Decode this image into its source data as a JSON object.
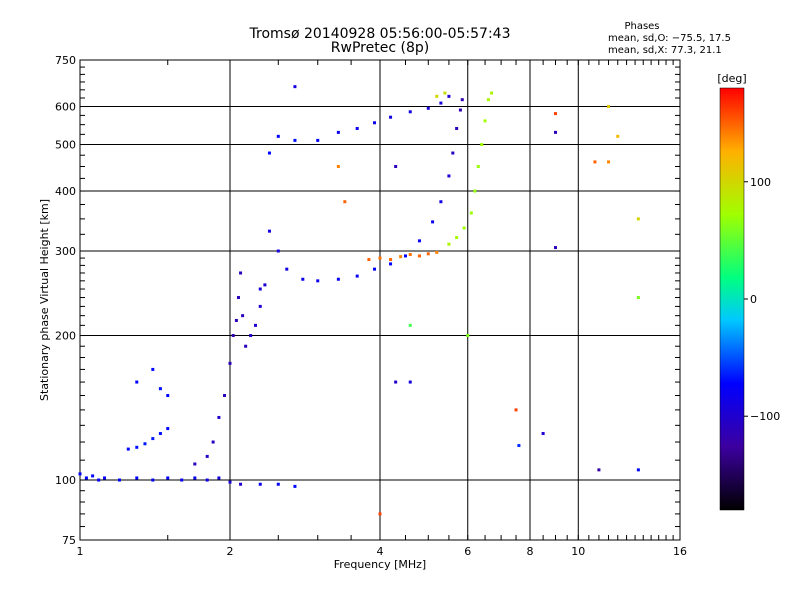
{
  "chart_data": {
    "type": "scatter",
    "title": "Tromsø 20140928 05:56:00-05:57:43",
    "subtitle": "RwPretec (8p)",
    "xlabel": "Frequency [MHz]",
    "ylabel": "Stationary phase Virtual Height [km]",
    "x_scale": "log",
    "y_scale": "log",
    "xlim": [
      1,
      16
    ],
    "ylim": [
      75,
      750
    ],
    "x_ticks": [
      "1",
      "2",
      "4",
      "6",
      "8",
      "10",
      "16"
    ],
    "y_ticks": [
      "75",
      "100",
      "200",
      "300",
      "400",
      "500",
      "600",
      "750"
    ],
    "grid": true,
    "stats": {
      "header": "Phases",
      "line_o": "mean, sd,O: −75.5, 17.5",
      "line_x": "mean, sd,X:  77.3, 21.1"
    },
    "colorbar": {
      "label": "[deg]",
      "range": [
        -180,
        180
      ],
      "ticks": [
        "100",
        "0",
        "−100"
      ],
      "tick_values": [
        100,
        0,
        -100
      ]
    },
    "series": [
      {
        "points": [
          [
            1.0,
            103,
            -75
          ],
          [
            1.03,
            101,
            -72
          ],
          [
            1.06,
            102,
            -70
          ],
          [
            1.09,
            100,
            -74
          ],
          [
            1.12,
            101,
            -78
          ],
          [
            1.2,
            100,
            -75
          ],
          [
            1.3,
            101,
            -72
          ],
          [
            1.4,
            100,
            -76
          ],
          [
            1.5,
            101,
            -74
          ],
          [
            1.6,
            100,
            -78
          ],
          [
            1.7,
            101,
            -80
          ],
          [
            1.8,
            100,
            -85
          ],
          [
            1.9,
            101,
            -90
          ],
          [
            2.0,
            99,
            -95
          ],
          [
            2.1,
            98,
            -100
          ],
          [
            2.3,
            98,
            -80
          ],
          [
            2.5,
            98,
            -75
          ],
          [
            2.7,
            97,
            -70
          ]
        ]
      },
      {
        "points": [
          [
            1.25,
            116,
            -70
          ],
          [
            1.3,
            117,
            -68
          ],
          [
            1.35,
            119,
            -66
          ],
          [
            1.4,
            122,
            -65
          ],
          [
            1.45,
            125,
            -68
          ],
          [
            1.5,
            128,
            -70
          ]
        ]
      },
      {
        "points": [
          [
            1.3,
            160,
            -72
          ],
          [
            1.4,
            170,
            -70
          ],
          [
            1.45,
            155,
            -68
          ],
          [
            1.5,
            150,
            -70
          ]
        ]
      },
      {
        "points": [
          [
            1.7,
            108,
            -110
          ],
          [
            1.8,
            112,
            -105
          ],
          [
            1.85,
            120,
            -108
          ],
          [
            1.9,
            135,
            -102
          ],
          [
            1.95,
            150,
            -110
          ],
          [
            2.0,
            175,
            -112
          ],
          [
            2.03,
            200,
            -115
          ],
          [
            2.06,
            215,
            -110
          ],
          [
            2.08,
            240,
            -112
          ],
          [
            2.1,
            270,
            -108
          ],
          [
            2.12,
            220,
            -110
          ],
          [
            2.15,
            190,
            -112
          ],
          [
            2.2,
            200,
            -105
          ],
          [
            2.25,
            210,
            -100
          ],
          [
            2.3,
            230,
            -98
          ],
          [
            2.35,
            255,
            -95
          ]
        ]
      },
      {
        "points": [
          [
            2.3,
            250,
            -95
          ],
          [
            2.4,
            330,
            -90
          ],
          [
            2.5,
            300,
            -92
          ],
          [
            2.6,
            275,
            -88
          ],
          [
            2.8,
            262,
            -85
          ],
          [
            3.0,
            260,
            -82
          ],
          [
            3.3,
            262,
            -80
          ],
          [
            3.6,
            266,
            -78
          ],
          [
            3.9,
            275,
            -75
          ],
          [
            4.2,
            282,
            -72
          ],
          [
            4.5,
            293,
            -75
          ],
          [
            4.8,
            315,
            -78
          ],
          [
            5.1,
            345,
            -82
          ],
          [
            5.3,
            380,
            -88
          ],
          [
            5.5,
            430,
            -95
          ],
          [
            5.6,
            480,
            -105
          ],
          [
            5.7,
            540,
            -110
          ],
          [
            5.8,
            590,
            -115
          ],
          [
            5.85,
            620,
            -118
          ]
        ]
      },
      {
        "points": [
          [
            2.4,
            480,
            -70
          ],
          [
            2.5,
            520,
            -72
          ],
          [
            2.7,
            510,
            -68
          ],
          [
            3.0,
            510,
            -75
          ],
          [
            3.3,
            530,
            -80
          ],
          [
            3.6,
            540,
            -82
          ],
          [
            3.9,
            555,
            -85
          ],
          [
            4.2,
            570,
            -88
          ],
          [
            4.6,
            585,
            -90
          ],
          [
            5.0,
            595,
            -92
          ],
          [
            5.3,
            610,
            -95
          ],
          [
            5.5,
            630,
            -98
          ]
        ]
      },
      {
        "points": [
          [
            3.8,
            288,
            150
          ],
          [
            4.0,
            290,
            145
          ],
          [
            4.2,
            288,
            148
          ],
          [
            4.4,
            292,
            140
          ],
          [
            4.6,
            295,
            145
          ],
          [
            4.8,
            293,
            150
          ],
          [
            5.0,
            296,
            148
          ],
          [
            5.2,
            298,
            140
          ]
        ]
      },
      {
        "points": [
          [
            5.5,
            310,
            80
          ],
          [
            5.7,
            320,
            75
          ],
          [
            5.9,
            335,
            72
          ],
          [
            6.1,
            360,
            70
          ],
          [
            6.2,
            400,
            68
          ],
          [
            6.3,
            450,
            70
          ],
          [
            6.4,
            500,
            72
          ],
          [
            6.5,
            560,
            74
          ],
          [
            6.6,
            620,
            76
          ],
          [
            6.7,
            640,
            80
          ],
          [
            5.2,
            630,
            100
          ],
          [
            5.4,
            640,
            95
          ]
        ]
      },
      {
        "points": [
          [
            2.7,
            660,
            -90
          ],
          [
            4.3,
            450,
            -110
          ],
          [
            4.3,
            160,
            -100
          ],
          [
            4.6,
            160,
            -90
          ],
          [
            4.6,
            210,
            40
          ],
          [
            7.5,
            140,
            160
          ],
          [
            7.6,
            118,
            -60
          ],
          [
            8.5,
            125,
            -100
          ],
          [
            9.0,
            305,
            -110
          ],
          [
            9.0,
            580,
            160
          ],
          [
            9.0,
            530,
            -110
          ],
          [
            10.8,
            460,
            150
          ],
          [
            11.5,
            460,
            140
          ],
          [
            11.5,
            600,
            110
          ],
          [
            12.0,
            520,
            120
          ],
          [
            13.2,
            350,
            100
          ],
          [
            13.2,
            240,
            60
          ],
          [
            11.0,
            105,
            -120
          ],
          [
            13.2,
            105,
            -70
          ],
          [
            4.0,
            85,
            160
          ],
          [
            3.3,
            450,
            140
          ],
          [
            3.4,
            380,
            150
          ],
          [
            6.0,
            200,
            60
          ]
        ]
      }
    ]
  }
}
